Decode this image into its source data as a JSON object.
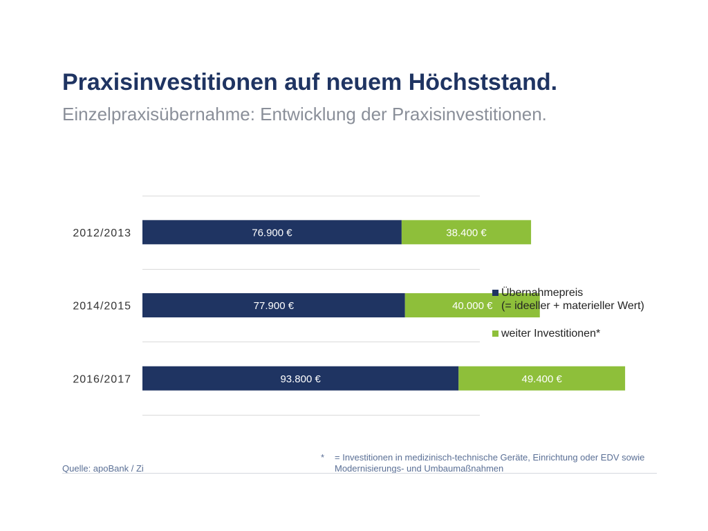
{
  "header": {
    "title": "Praxisinvestitionen auf neuem Höchststand.",
    "subtitle": "Einzelpraxisübernahme: Entwicklung der Praxisinvestitionen."
  },
  "colors": {
    "title": "#1f3462",
    "series_1": "#1f3462",
    "series_2": "#8ebf3a",
    "gridline": "#d9d9d9"
  },
  "chart_data": {
    "type": "bar",
    "orientation": "horizontal",
    "stacked": true,
    "categories": [
      "2012/2013",
      "2014/2015",
      "2016/2017"
    ],
    "series": [
      {
        "name": "Übernahmepreis (= ideeller + materieller Wert)",
        "values": [
          76900,
          77900,
          93800
        ],
        "labels": [
          "76.900 €",
          "77.900 €",
          "93.800 €"
        ]
      },
      {
        "name": "weiter Investitionen*",
        "values": [
          38400,
          40000,
          49400
        ],
        "labels": [
          "38.400 €",
          "40.000 €",
          "49.400 €"
        ]
      }
    ],
    "xlim": [
      0,
      150000
    ],
    "grid": true,
    "legend_position": "right"
  },
  "legend": {
    "item1_line1": "Übernahmepreis",
    "item1_line2": "(= ideeller + materieller Wert)",
    "item2": "weiter Investitionen*"
  },
  "footer": {
    "source": "Quelle: apoBank / Zi",
    "footnote_mark": "*",
    "footnote_line1": "= Investitionen in medizinisch-technische Geräte, Einrichtung oder EDV sowie",
    "footnote_line2": "Modernisierungs- und Umbaumaßnahmen"
  }
}
